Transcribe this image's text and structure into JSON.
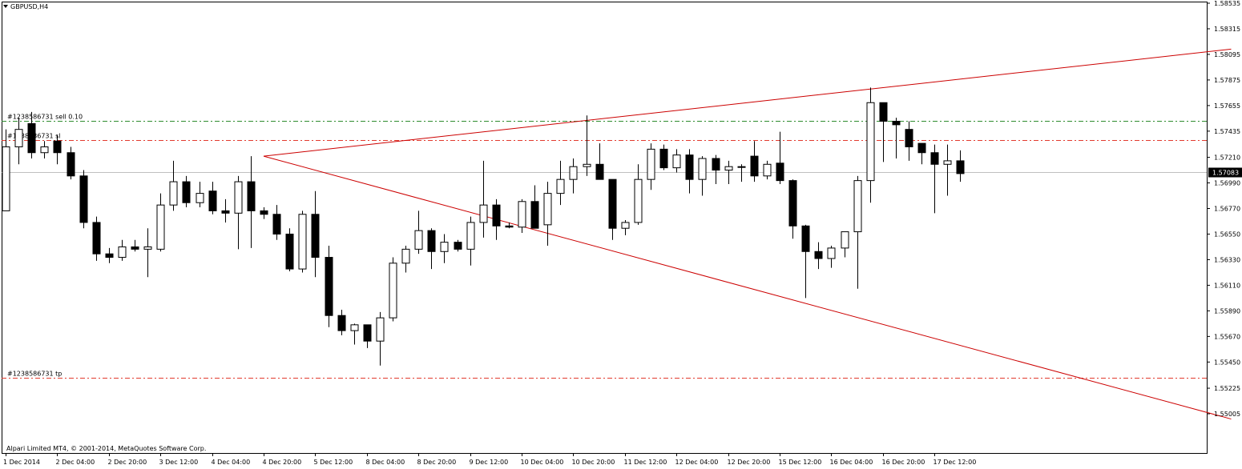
{
  "header": {
    "symbol": "GBPUSD,H4"
  },
  "footer": {
    "copyright": "Alpari Limited MT4, © 2001-2014, MetaQuotes Software Corp."
  },
  "colors": {
    "bull": "#ffffff",
    "bear": "#000000",
    "grid": "#c0c0c0",
    "tp_sl": "#e23a2e",
    "entry": "#2e8b2e",
    "trendline": "#cc0000",
    "price_line": "#c0c0c0"
  },
  "chart_data": {
    "type": "candlestick",
    "symbol": "GBPUSD",
    "timeframe": "H4",
    "ylim": [
      1.54895,
      1.58535
    ],
    "y_ticks": [
      "1.58535",
      "1.58315",
      "1.58095",
      "1.57875",
      "1.57655",
      "1.57435",
      "1.57210",
      "1.56990",
      "1.56770",
      "1.56550",
      "1.56330",
      "1.56110",
      "1.55890",
      "1.55670",
      "1.55450",
      "1.55225",
      "1.55005"
    ],
    "x_labels": [
      "1 Dec 2014",
      "2 Dec 04:00",
      "2 Dec 20:00",
      "3 Dec 12:00",
      "4 Dec 04:00",
      "4 Dec 20:00",
      "5 Dec 12:00",
      "8 Dec 04:00",
      "8 Dec 20:00",
      "9 Dec 12:00",
      "10 Dec 04:00",
      "10 Dec 20:00",
      "11 Dec 12:00",
      "12 Dec 04:00",
      "12 Dec 20:00",
      "15 Dec 12:00",
      "16 Dec 04:00",
      "16 Dec 20:00",
      "17 Dec 12:00"
    ],
    "current_price": "1.57083",
    "candles": [
      [
        1.5675,
        1.5745,
        1.5675,
        1.573
      ],
      [
        1.573,
        1.5755,
        1.5715,
        1.5745
      ],
      [
        1.575,
        1.576,
        1.572,
        1.5725
      ],
      [
        1.5725,
        1.5735,
        1.572,
        1.573
      ],
      [
        1.5735,
        1.574,
        1.5715,
        1.5725
      ],
      [
        1.5725,
        1.573,
        1.5702,
        1.5705
      ],
      [
        1.5705,
        1.571,
        1.566,
        1.5665
      ],
      [
        1.5665,
        1.567,
        1.5632,
        1.5638
      ],
      [
        1.5638,
        1.5643,
        1.563,
        1.5635
      ],
      [
        1.5635,
        1.565,
        1.5632,
        1.5644
      ],
      [
        1.5644,
        1.565,
        1.564,
        1.5642
      ],
      [
        1.5642,
        1.566,
        1.5618,
        1.5644
      ],
      [
        1.5642,
        1.569,
        1.564,
        1.568
      ],
      [
        1.568,
        1.5718,
        1.5675,
        1.57
      ],
      [
        1.57,
        1.5705,
        1.5678,
        1.5682
      ],
      [
        1.5682,
        1.57,
        1.5678,
        1.569
      ],
      [
        1.5692,
        1.57,
        1.5672,
        1.5675
      ],
      [
        1.5675,
        1.5685,
        1.5665,
        1.5673
      ],
      [
        1.5673,
        1.5705,
        1.5642,
        1.57
      ],
      [
        1.57,
        1.5722,
        1.5643,
        1.5675
      ],
      [
        1.5675,
        1.5678,
        1.5668,
        1.5672
      ],
      [
        1.5672,
        1.568,
        1.565,
        1.5655
      ],
      [
        1.5655,
        1.566,
        1.5623,
        1.5625
      ],
      [
        1.5625,
        1.5675,
        1.5622,
        1.5672
      ],
      [
        1.5672,
        1.5692,
        1.5618,
        1.5635
      ],
      [
        1.5635,
        1.5645,
        1.5575,
        1.5585
      ],
      [
        1.5585,
        1.559,
        1.5568,
        1.5572
      ],
      [
        1.5572,
        1.5578,
        1.556,
        1.5577
      ],
      [
        1.5577,
        1.5577,
        1.5557,
        1.5563
      ],
      [
        1.5563,
        1.5588,
        1.5542,
        1.5583
      ],
      [
        1.5583,
        1.5635,
        1.558,
        1.563
      ],
      [
        1.563,
        1.5645,
        1.5622,
        1.5642
      ],
      [
        1.5642,
        1.5675,
        1.5638,
        1.5658
      ],
      [
        1.5658,
        1.566,
        1.5625,
        1.564
      ],
      [
        1.564,
        1.5655,
        1.563,
        1.5648
      ],
      [
        1.5648,
        1.565,
        1.564,
        1.5642
      ],
      [
        1.5642,
        1.567,
        1.5628,
        1.5665
      ],
      [
        1.5665,
        1.5718,
        1.5652,
        1.568
      ],
      [
        1.568,
        1.5685,
        1.565,
        1.5662
      ],
      [
        1.5662,
        1.5665,
        1.566,
        1.5661
      ],
      [
        1.5661,
        1.5685,
        1.5656,
        1.5683
      ],
      [
        1.5683,
        1.5697,
        1.566,
        1.566
      ],
      [
        1.5663,
        1.57,
        1.5645,
        1.569
      ],
      [
        1.569,
        1.5718,
        1.568,
        1.5702
      ],
      [
        1.5702,
        1.572,
        1.569,
        1.5713
      ],
      [
        1.5713,
        1.5757,
        1.5705,
        1.5715
      ],
      [
        1.5715,
        1.5733,
        1.5704,
        1.5702
      ],
      [
        1.5702,
        1.5702,
        1.565,
        1.566
      ],
      [
        1.566,
        1.5667,
        1.5654,
        1.5665
      ],
      [
        1.5665,
        1.5715,
        1.5663,
        1.5702
      ],
      [
        1.5702,
        1.5733,
        1.5693,
        1.5728
      ],
      [
        1.5728,
        1.5732,
        1.571,
        1.5712
      ],
      [
        1.5712,
        1.5728,
        1.5708,
        1.5723
      ],
      [
        1.5723,
        1.5728,
        1.569,
        1.5702
      ],
      [
        1.5702,
        1.5722,
        1.5688,
        1.572
      ],
      [
        1.572,
        1.5723,
        1.5698,
        1.571
      ],
      [
        1.571,
        1.5718,
        1.5698,
        1.5713
      ],
      [
        1.5713,
        1.5715,
        1.57,
        1.5713
      ],
      [
        1.5722,
        1.5735,
        1.57,
        1.5705
      ],
      [
        1.5705,
        1.5718,
        1.5702,
        1.5715
      ],
      [
        1.5716,
        1.5743,
        1.5698,
        1.5701
      ],
      [
        1.5701,
        1.5702,
        1.5651,
        1.5662
      ],
      [
        1.5662,
        1.5663,
        1.56,
        1.564
      ],
      [
        1.564,
        1.5648,
        1.5625,
        1.5634
      ],
      [
        1.5634,
        1.5645,
        1.5626,
        1.5643
      ],
      [
        1.5643,
        1.5657,
        1.5635,
        1.5657
      ],
      [
        1.5657,
        1.5705,
        1.5608,
        1.5701
      ],
      [
        1.5701,
        1.5781,
        1.5682,
        1.5768
      ],
      [
        1.5768,
        1.5768,
        1.5717,
        1.5752
      ],
      [
        1.5752,
        1.5755,
        1.572,
        1.5749
      ],
      [
        1.5745,
        1.5752,
        1.5718,
        1.573
      ],
      [
        1.5733,
        1.5733,
        1.5715,
        1.5725
      ],
      [
        1.5725,
        1.5732,
        1.5673,
        1.5715
      ],
      [
        1.5715,
        1.5732,
        1.5688,
        1.5718
      ],
      [
        1.5718,
        1.5727,
        1.57,
        1.5707
      ]
    ],
    "horizontal_lines": [
      {
        "label": "#1238586731 sell 0.10",
        "price": 1.57522,
        "style": "entry"
      },
      {
        "label": "#1238586731 sl",
        "price": 1.57355,
        "style": "sl"
      },
      {
        "label": "#1238586731 tp",
        "price": 1.55318,
        "style": "tp"
      }
    ],
    "trendlines": [
      {
        "from": [
          20,
          1.5722
        ],
        "to": [
          95,
          1.5814
        ]
      },
      {
        "from": [
          20,
          1.5722
        ],
        "to": [
          95,
          1.5496
        ]
      }
    ]
  }
}
